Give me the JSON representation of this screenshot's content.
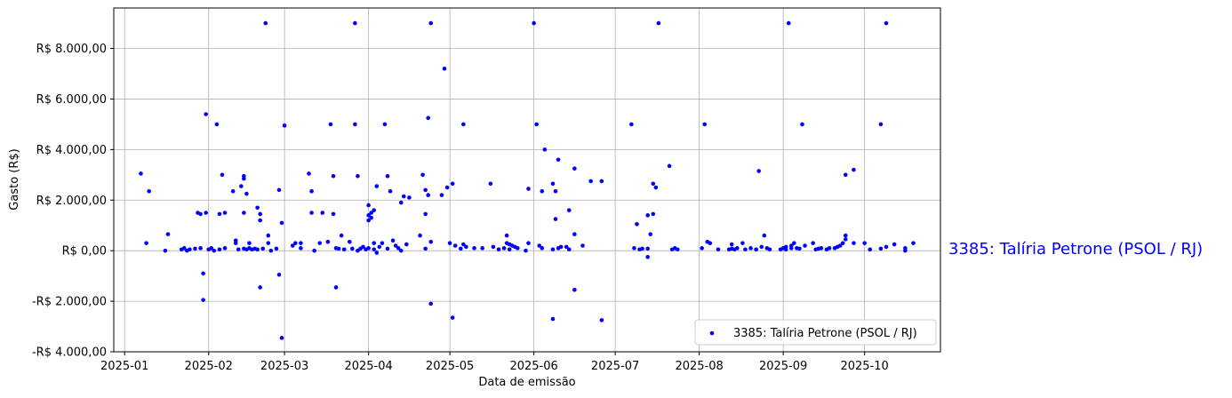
{
  "chart_data": {
    "type": "scatter",
    "xlabel": "Data de emissão",
    "ylabel": "Gasto (R$)",
    "xlim": [
      "2024-12-28",
      "2025-10-29"
    ],
    "ylim": [
      -4000,
      9600
    ],
    "x_ticks": [
      {
        "date": "2025-01-01",
        "label": "2025-01"
      },
      {
        "date": "2025-02-01",
        "label": "2025-02"
      },
      {
        "date": "2025-03-01",
        "label": "2025-03"
      },
      {
        "date": "2025-04-01",
        "label": "2025-04"
      },
      {
        "date": "2025-05-01",
        "label": "2025-05"
      },
      {
        "date": "2025-06-01",
        "label": "2025-06"
      },
      {
        "date": "2025-07-01",
        "label": "2025-07"
      },
      {
        "date": "2025-08-01",
        "label": "2025-08"
      },
      {
        "date": "2025-09-01",
        "label": "2025-09"
      },
      {
        "date": "2025-10-01",
        "label": "2025-10"
      }
    ],
    "y_ticks": [
      {
        "value": -4000,
        "label": "-R$ 4.000,00"
      },
      {
        "value": -2000,
        "label": "-R$ 2.000,00"
      },
      {
        "value": 0,
        "label": "R$ 0,00"
      },
      {
        "value": 2000,
        "label": "R$ 2.000,00"
      },
      {
        "value": 4000,
        "label": "R$ 4.000,00"
      },
      {
        "value": 6000,
        "label": "R$ 6.000,00"
      },
      {
        "value": 8000,
        "label": "R$ 8.000,00"
      }
    ],
    "grid": true,
    "legend_position": "bottom-right",
    "series": [
      {
        "name": "3385: Talíria Petrone (PSOL / RJ)",
        "color": "#0000ff",
        "points": [
          [
            "2025-01-07",
            3050
          ],
          [
            "2025-01-09",
            300
          ],
          [
            "2025-01-10",
            2350
          ],
          [
            "2025-01-16",
            0
          ],
          [
            "2025-01-17",
            650
          ],
          [
            "2025-01-22",
            50
          ],
          [
            "2025-01-23",
            100
          ],
          [
            "2025-01-24",
            0
          ],
          [
            "2025-01-25",
            50
          ],
          [
            "2025-01-27",
            80
          ],
          [
            "2025-01-28",
            1500
          ],
          [
            "2025-01-29",
            1450
          ],
          [
            "2025-01-29",
            100
          ],
          [
            "2025-01-30",
            -900
          ],
          [
            "2025-01-30",
            -1950
          ],
          [
            "2025-01-31",
            5400
          ],
          [
            "2025-01-31",
            1500
          ],
          [
            "2025-02-01",
            50
          ],
          [
            "2025-02-02",
            100
          ],
          [
            "2025-02-03",
            0
          ],
          [
            "2025-02-04",
            5000
          ],
          [
            "2025-02-05",
            1450
          ],
          [
            "2025-02-05",
            50
          ],
          [
            "2025-02-06",
            3000
          ],
          [
            "2025-02-07",
            1500
          ],
          [
            "2025-02-07",
            100
          ],
          [
            "2025-02-10",
            2350
          ],
          [
            "2025-02-11",
            400
          ],
          [
            "2025-02-11",
            300
          ],
          [
            "2025-02-12",
            50
          ],
          [
            "2025-02-13",
            2550
          ],
          [
            "2025-02-14",
            2950
          ],
          [
            "2025-02-14",
            2850
          ],
          [
            "2025-02-14",
            1500
          ],
          [
            "2025-02-14",
            80
          ],
          [
            "2025-02-15",
            2250
          ],
          [
            "2025-02-15",
            50
          ],
          [
            "2025-02-16",
            300
          ],
          [
            "2025-02-16",
            100
          ],
          [
            "2025-02-17",
            50
          ],
          [
            "2025-02-18",
            80
          ],
          [
            "2025-02-19",
            1700
          ],
          [
            "2025-02-19",
            50
          ],
          [
            "2025-02-20",
            1450
          ],
          [
            "2025-02-20",
            1200
          ],
          [
            "2025-02-20",
            -1450
          ],
          [
            "2025-02-21",
            80
          ],
          [
            "2025-02-22",
            9000
          ],
          [
            "2025-02-23",
            600
          ],
          [
            "2025-02-23",
            300
          ],
          [
            "2025-02-24",
            0
          ],
          [
            "2025-02-26",
            80
          ],
          [
            "2025-02-27",
            2400
          ],
          [
            "2025-02-27",
            -950
          ],
          [
            "2025-02-28",
            1100
          ],
          [
            "2025-02-28",
            -3450
          ],
          [
            "2025-03-01",
            4950
          ],
          [
            "2025-03-04",
            200
          ],
          [
            "2025-03-05",
            300
          ],
          [
            "2025-03-07",
            300
          ],
          [
            "2025-03-07",
            100
          ],
          [
            "2025-03-10",
            3050
          ],
          [
            "2025-03-11",
            2350
          ],
          [
            "2025-03-11",
            1500
          ],
          [
            "2025-03-12",
            0
          ],
          [
            "2025-03-14",
            300
          ],
          [
            "2025-03-15",
            1500
          ],
          [
            "2025-03-17",
            350
          ],
          [
            "2025-03-18",
            5000
          ],
          [
            "2025-03-19",
            2950
          ],
          [
            "2025-03-19",
            1450
          ],
          [
            "2025-03-20",
            100
          ],
          [
            "2025-03-20",
            -1450
          ],
          [
            "2025-03-21",
            80
          ],
          [
            "2025-03-22",
            600
          ],
          [
            "2025-03-23",
            50
          ],
          [
            "2025-03-25",
            350
          ],
          [
            "2025-03-26",
            80
          ],
          [
            "2025-03-27",
            9000
          ],
          [
            "2025-03-27",
            5000
          ],
          [
            "2025-03-28",
            2950
          ],
          [
            "2025-03-28",
            0
          ],
          [
            "2025-03-29",
            80
          ],
          [
            "2025-03-30",
            150
          ],
          [
            "2025-03-31",
            50
          ],
          [
            "2025-04-01",
            100
          ],
          [
            "2025-04-01",
            1800
          ],
          [
            "2025-04-01",
            1400
          ],
          [
            "2025-04-01",
            1200
          ],
          [
            "2025-04-02",
            1500
          ],
          [
            "2025-04-02",
            1300
          ],
          [
            "2025-04-03",
            1600
          ],
          [
            "2025-04-03",
            300
          ],
          [
            "2025-04-03",
            50
          ],
          [
            "2025-04-04",
            2550
          ],
          [
            "2025-04-04",
            -80
          ],
          [
            "2025-04-05",
            150
          ],
          [
            "2025-04-06",
            300
          ],
          [
            "2025-04-07",
            5000
          ],
          [
            "2025-04-08",
            2950
          ],
          [
            "2025-04-08",
            80
          ],
          [
            "2025-04-09",
            2350
          ],
          [
            "2025-04-10",
            400
          ],
          [
            "2025-04-11",
            200
          ],
          [
            "2025-04-12",
            100
          ],
          [
            "2025-04-13",
            1900
          ],
          [
            "2025-04-13",
            0
          ],
          [
            "2025-04-14",
            2150
          ],
          [
            "2025-04-15",
            250
          ],
          [
            "2025-04-16",
            2100
          ],
          [
            "2025-04-20",
            600
          ],
          [
            "2025-04-21",
            3000
          ],
          [
            "2025-04-22",
            2400
          ],
          [
            "2025-04-22",
            1450
          ],
          [
            "2025-04-22",
            80
          ],
          [
            "2025-04-23",
            2200
          ],
          [
            "2025-04-23",
            5250
          ],
          [
            "2025-04-24",
            9000
          ],
          [
            "2025-04-24",
            350
          ],
          [
            "2025-04-24",
            -2100
          ],
          [
            "2025-04-28",
            2200
          ],
          [
            "2025-04-29",
            7200
          ],
          [
            "2025-04-30",
            2500
          ],
          [
            "2025-05-01",
            300
          ],
          [
            "2025-05-02",
            2650
          ],
          [
            "2025-05-02",
            -2650
          ],
          [
            "2025-05-03",
            200
          ],
          [
            "2025-05-05",
            80
          ],
          [
            "2025-05-06",
            250
          ],
          [
            "2025-05-06",
            5000
          ],
          [
            "2025-05-07",
            150
          ],
          [
            "2025-05-10",
            100
          ],
          [
            "2025-05-13",
            100
          ],
          [
            "2025-05-16",
            2650
          ],
          [
            "2025-05-17",
            150
          ],
          [
            "2025-05-19",
            50
          ],
          [
            "2025-05-21",
            100
          ],
          [
            "2025-05-22",
            600
          ],
          [
            "2025-05-22",
            300
          ],
          [
            "2025-05-23",
            250
          ],
          [
            "2025-05-23",
            50
          ],
          [
            "2025-05-24",
            200
          ],
          [
            "2025-05-25",
            150
          ],
          [
            "2025-05-26",
            100
          ],
          [
            "2025-05-29",
            0
          ],
          [
            "2025-05-30",
            2450
          ],
          [
            "2025-05-30",
            300
          ],
          [
            "2025-06-01",
            9000
          ],
          [
            "2025-06-02",
            5000
          ],
          [
            "2025-06-03",
            200
          ],
          [
            "2025-06-04",
            2350
          ],
          [
            "2025-06-04",
            100
          ],
          [
            "2025-06-05",
            4000
          ],
          [
            "2025-06-08",
            2650
          ],
          [
            "2025-06-08",
            50
          ],
          [
            "2025-06-08",
            -2700
          ],
          [
            "2025-06-09",
            2350
          ],
          [
            "2025-06-09",
            1250
          ],
          [
            "2025-06-10",
            3600
          ],
          [
            "2025-06-10",
            100
          ],
          [
            "2025-06-11",
            150
          ],
          [
            "2025-06-13",
            150
          ],
          [
            "2025-06-14",
            1600
          ],
          [
            "2025-06-14",
            50
          ],
          [
            "2025-06-16",
            3250
          ],
          [
            "2025-06-16",
            650
          ],
          [
            "2025-06-16",
            -1550
          ],
          [
            "2025-06-19",
            200
          ],
          [
            "2025-06-22",
            2750
          ],
          [
            "2025-06-26",
            2750
          ],
          [
            "2025-06-26",
            -2750
          ],
          [
            "2025-07-07",
            5000
          ],
          [
            "2025-07-08",
            100
          ],
          [
            "2025-07-09",
            1050
          ],
          [
            "2025-07-10",
            50
          ],
          [
            "2025-07-11",
            80
          ],
          [
            "2025-07-13",
            1400
          ],
          [
            "2025-07-13",
            80
          ],
          [
            "2025-07-13",
            -250
          ],
          [
            "2025-07-14",
            650
          ],
          [
            "2025-07-15",
            1450
          ],
          [
            "2025-07-15",
            2650
          ],
          [
            "2025-07-16",
            2500
          ],
          [
            "2025-07-17",
            9000
          ],
          [
            "2025-07-21",
            3350
          ],
          [
            "2025-07-22",
            50
          ],
          [
            "2025-07-23",
            100
          ],
          [
            "2025-07-24",
            50
          ],
          [
            "2025-08-02",
            100
          ],
          [
            "2025-08-03",
            5000
          ],
          [
            "2025-08-04",
            350
          ],
          [
            "2025-08-05",
            300
          ],
          [
            "2025-08-08",
            50
          ],
          [
            "2025-08-12",
            50
          ],
          [
            "2025-08-13",
            80
          ],
          [
            "2025-08-13",
            250
          ],
          [
            "2025-08-14",
            50
          ],
          [
            "2025-08-15",
            100
          ],
          [
            "2025-08-17",
            300
          ],
          [
            "2025-08-18",
            50
          ],
          [
            "2025-08-20",
            100
          ],
          [
            "2025-08-22",
            50
          ],
          [
            "2025-08-23",
            3150
          ],
          [
            "2025-08-24",
            150
          ],
          [
            "2025-08-25",
            600
          ],
          [
            "2025-08-26",
            100
          ],
          [
            "2025-08-27",
            50
          ],
          [
            "2025-08-31",
            50
          ],
          [
            "2025-09-01",
            100
          ],
          [
            "2025-09-02",
            150
          ],
          [
            "2025-09-02",
            50
          ],
          [
            "2025-09-03",
            9000
          ],
          [
            "2025-09-04",
            200
          ],
          [
            "2025-09-04",
            100
          ],
          [
            "2025-09-05",
            300
          ],
          [
            "2025-09-06",
            100
          ],
          [
            "2025-09-07",
            80
          ],
          [
            "2025-09-08",
            5000
          ],
          [
            "2025-09-09",
            200
          ],
          [
            "2025-09-12",
            300
          ],
          [
            "2025-09-13",
            50
          ],
          [
            "2025-09-14",
            80
          ],
          [
            "2025-09-15",
            100
          ],
          [
            "2025-09-17",
            50
          ],
          [
            "2025-09-18",
            100
          ],
          [
            "2025-09-20",
            100
          ],
          [
            "2025-09-21",
            150
          ],
          [
            "2025-09-22",
            200
          ],
          [
            "2025-09-23",
            300
          ],
          [
            "2025-09-24",
            3000
          ],
          [
            "2025-09-24",
            600
          ],
          [
            "2025-09-24",
            450
          ],
          [
            "2025-09-27",
            3200
          ],
          [
            "2025-09-27",
            300
          ],
          [
            "2025-10-01",
            300
          ],
          [
            "2025-10-03",
            50
          ],
          [
            "2025-10-07",
            5000
          ],
          [
            "2025-10-07",
            80
          ],
          [
            "2025-10-09",
            9000
          ],
          [
            "2025-10-09",
            150
          ],
          [
            "2025-10-12",
            250
          ],
          [
            "2025-10-16",
            100
          ],
          [
            "2025-10-16",
            0
          ],
          [
            "2025-10-19",
            300
          ]
        ]
      }
    ]
  },
  "legend": {
    "label": "3385: Talíria Petrone (PSOL / RJ)"
  },
  "side_label": {
    "text": "3385: Talíria Petrone (PSOL / RJ)",
    "color": "#0000ff"
  }
}
